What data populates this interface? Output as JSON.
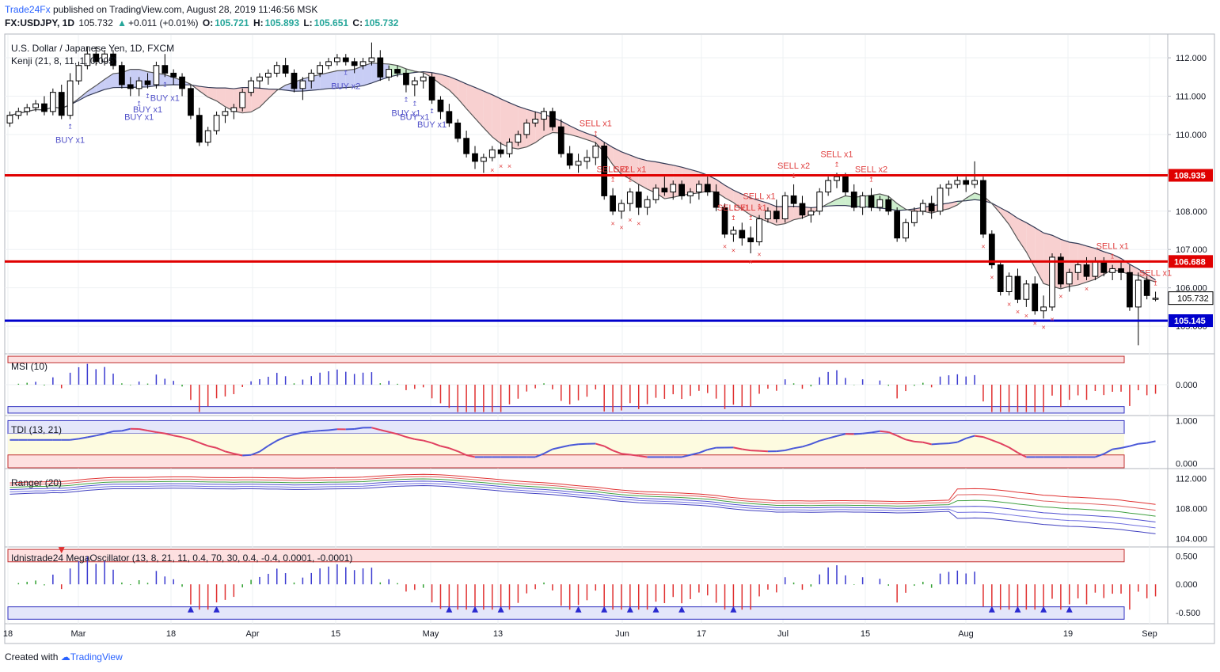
{
  "header": {
    "brand": "Trade24Fx",
    "published": "published on TradingView.com, August 28, 2019 11:46:56 MSK",
    "symbol": "FX:USDJPY, 1D",
    "last": "105.732",
    "change": "+0.011 (+0.01%)",
    "o_label": "O:",
    "o": "105.721",
    "h_label": "H:",
    "h": "105.893",
    "l_label": "L:",
    "l": "105.651",
    "c_label": "C:",
    "c": "105.732"
  },
  "footer": {
    "created": "Created with",
    "tv": "TradingView"
  },
  "colors": {
    "bull": "#ffffff",
    "bear": "#000000",
    "support": "#0000cc",
    "resistance": "#e00000",
    "buy": "#5050c8",
    "sell": "#e04040"
  },
  "chart_data": [
    {
      "type": "candlestick",
      "title": "U.S. Dollar / Japanese Yen, 1D, FXCM",
      "indicator_label": "Kenji (21, 8, 11, 1, 0.005)",
      "ylim": [
        104.3,
        112.6
      ],
      "yticks": [
        "112.000",
        "111.000",
        "110.000",
        "109.000",
        "108.000",
        "107.000",
        "106.000",
        "105.000"
      ],
      "xticks": [
        "18",
        "Mar",
        "18",
        "Apr",
        "15",
        "May",
        "13",
        "Jun",
        "17",
        "Jul",
        "15",
        "Aug",
        "19",
        "Sep"
      ],
      "horizontal_levels": [
        {
          "value": 108.935,
          "label": "108.935",
          "color": "#e00000"
        },
        {
          "value": 106.688,
          "label": "106.688",
          "color": "#e00000"
        },
        {
          "value": 105.145,
          "label": "105.145",
          "color": "#0000cc"
        }
      ],
      "last_price_label": "105.732",
      "annotations": [
        "BUY x1",
        "BUY x1",
        "BUY x1",
        "BUY x1",
        "BUY x2",
        "BUY x1",
        "BUY x1",
        "BUY x1",
        "SELL x1",
        "SELL x2",
        "SELL x1",
        "SELL x1",
        "SELL x1",
        "SELL x1",
        "SELL x2",
        "SELL x1",
        "SELL x2",
        "SELL x1",
        "SELL x1"
      ],
      "ohlc": [
        [
          110.3,
          110.6,
          110.2,
          110.5
        ],
        [
          110.5,
          110.7,
          110.4,
          110.6
        ],
        [
          110.6,
          110.8,
          110.5,
          110.7
        ],
        [
          110.7,
          110.9,
          110.6,
          110.8
        ],
        [
          110.8,
          111.0,
          110.5,
          110.6
        ],
        [
          110.6,
          111.2,
          110.5,
          111.1
        ],
        [
          111.1,
          111.3,
          110.4,
          110.5
        ],
        [
          110.5,
          111.6,
          110.4,
          111.4
        ],
        [
          111.4,
          111.9,
          111.3,
          111.8
        ],
        [
          111.8,
          112.3,
          111.7,
          112.1
        ],
        [
          112.1,
          112.3,
          111.8,
          111.9
        ],
        [
          111.9,
          112.2,
          111.8,
          112.1
        ],
        [
          112.1,
          112.2,
          111.7,
          111.8
        ],
        [
          111.8,
          111.9,
          111.2,
          111.3
        ],
        [
          111.3,
          111.5,
          111.0,
          111.2
        ],
        [
          111.2,
          111.5,
          111.0,
          111.4
        ],
        [
          111.4,
          111.6,
          111.2,
          111.3
        ],
        [
          111.3,
          111.9,
          111.2,
          111.8
        ],
        [
          111.8,
          112.1,
          111.5,
          111.6
        ],
        [
          111.6,
          111.7,
          111.3,
          111.5
        ],
        [
          111.5,
          111.6,
          111.0,
          111.2
        ],
        [
          111.2,
          111.3,
          110.4,
          110.5
        ],
        [
          110.5,
          110.7,
          109.7,
          109.8
        ],
        [
          109.8,
          110.2,
          109.7,
          110.1
        ],
        [
          110.1,
          110.6,
          110.0,
          110.5
        ],
        [
          110.5,
          110.7,
          110.3,
          110.6
        ],
        [
          110.6,
          110.8,
          110.4,
          110.7
        ],
        [
          110.7,
          111.2,
          110.6,
          111.1
        ],
        [
          111.1,
          111.5,
          111.0,
          111.4
        ],
        [
          111.4,
          111.6,
          111.2,
          111.5
        ],
        [
          111.5,
          111.7,
          111.3,
          111.6
        ],
        [
          111.6,
          111.9,
          111.5,
          111.8
        ],
        [
          111.8,
          112.0,
          111.5,
          111.6
        ],
        [
          111.6,
          111.7,
          111.1,
          111.2
        ],
        [
          111.2,
          111.5,
          110.9,
          111.4
        ],
        [
          111.4,
          111.7,
          111.2,
          111.6
        ],
        [
          111.6,
          111.9,
          111.5,
          111.8
        ],
        [
          111.8,
          112.0,
          111.7,
          111.9
        ],
        [
          111.9,
          112.1,
          111.8,
          112.0
        ],
        [
          112.0,
          112.1,
          111.8,
          111.9
        ],
        [
          111.9,
          112.0,
          111.6,
          111.8
        ],
        [
          111.8,
          112.0,
          111.7,
          111.9
        ],
        [
          111.9,
          112.4,
          111.8,
          112.0
        ],
        [
          112.0,
          112.2,
          111.4,
          111.5
        ],
        [
          111.5,
          111.8,
          111.4,
          111.7
        ],
        [
          111.7,
          111.8,
          111.5,
          111.6
        ],
        [
          111.6,
          111.7,
          111.1,
          111.3
        ],
        [
          111.3,
          111.5,
          111.0,
          111.4
        ],
        [
          111.4,
          111.6,
          111.2,
          111.5
        ],
        [
          111.5,
          111.6,
          110.8,
          110.9
        ],
        [
          110.9,
          111.0,
          110.4,
          110.6
        ],
        [
          110.6,
          110.8,
          110.2,
          110.3
        ],
        [
          110.3,
          110.4,
          109.8,
          109.9
        ],
        [
          109.9,
          110.1,
          109.4,
          109.5
        ],
        [
          109.5,
          109.7,
          109.1,
          109.3
        ],
        [
          109.3,
          109.5,
          109.0,
          109.4
        ],
        [
          109.4,
          109.7,
          109.3,
          109.6
        ],
        [
          109.6,
          109.8,
          109.4,
          109.5
        ],
        [
          109.5,
          109.9,
          109.4,
          109.8
        ],
        [
          109.8,
          110.1,
          109.7,
          110.0
        ],
        [
          110.0,
          110.4,
          109.9,
          110.3
        ],
        [
          110.3,
          110.6,
          110.2,
          110.4
        ],
        [
          110.4,
          110.7,
          110.1,
          110.6
        ],
        [
          110.6,
          110.7,
          110.1,
          110.2
        ],
        [
          110.2,
          110.4,
          109.4,
          109.5
        ],
        [
          109.5,
          109.7,
          109.1,
          109.2
        ],
        [
          109.2,
          109.5,
          109.0,
          109.3
        ],
        [
          109.3,
          109.6,
          109.1,
          109.4
        ],
        [
          109.4,
          109.8,
          109.2,
          109.7
        ],
        [
          109.7,
          109.8,
          108.3,
          108.4
        ],
        [
          108.4,
          108.6,
          107.9,
          108.0
        ],
        [
          108.0,
          108.3,
          107.8,
          108.2
        ],
        [
          108.2,
          108.6,
          108.0,
          108.5
        ],
        [
          108.5,
          108.7,
          107.9,
          108.1
        ],
        [
          108.1,
          108.4,
          107.9,
          108.3
        ],
        [
          108.3,
          108.7,
          108.2,
          108.6
        ],
        [
          108.6,
          108.9,
          108.4,
          108.5
        ],
        [
          108.5,
          108.8,
          108.3,
          108.7
        ],
        [
          108.7,
          108.8,
          108.3,
          108.4
        ],
        [
          108.4,
          108.6,
          108.2,
          108.5
        ],
        [
          108.5,
          108.8,
          108.3,
          108.7
        ],
        [
          108.7,
          108.9,
          108.4,
          108.5
        ],
        [
          108.5,
          108.7,
          108.0,
          108.1
        ],
        [
          108.1,
          108.2,
          107.3,
          107.4
        ],
        [
          107.4,
          107.6,
          107.2,
          107.5
        ],
        [
          107.5,
          107.7,
          107.1,
          107.3
        ],
        [
          107.3,
          107.6,
          106.9,
          107.2
        ],
        [
          107.2,
          107.9,
          107.1,
          107.8
        ],
        [
          107.8,
          108.1,
          107.7,
          108.0
        ],
        [
          108.0,
          108.3,
          107.7,
          107.8
        ],
        [
          107.8,
          108.5,
          107.7,
          108.4
        ],
        [
          108.4,
          108.7,
          108.1,
          108.2
        ],
        [
          108.2,
          108.4,
          107.8,
          107.9
        ],
        [
          107.9,
          108.1,
          107.7,
          108.0
        ],
        [
          108.0,
          108.6,
          107.9,
          108.5
        ],
        [
          108.5,
          108.9,
          108.4,
          108.8
        ],
        [
          108.8,
          109.0,
          108.6,
          108.9
        ],
        [
          108.9,
          109.0,
          108.4,
          108.5
        ],
        [
          108.5,
          108.7,
          108.0,
          108.1
        ],
        [
          108.1,
          108.5,
          107.9,
          108.4
        ],
        [
          108.4,
          108.6,
          108.0,
          108.1
        ],
        [
          108.1,
          108.4,
          108.0,
          108.3
        ],
        [
          108.3,
          108.4,
          107.9,
          108.0
        ],
        [
          108.0,
          108.1,
          107.2,
          107.3
        ],
        [
          107.3,
          107.8,
          107.2,
          107.7
        ],
        [
          107.7,
          108.1,
          107.6,
          108.0
        ],
        [
          108.0,
          108.3,
          107.9,
          108.2
        ],
        [
          108.2,
          108.4,
          107.8,
          108.0
        ],
        [
          108.0,
          108.7,
          107.9,
          108.6
        ],
        [
          108.6,
          108.8,
          108.4,
          108.7
        ],
        [
          108.7,
          108.9,
          108.6,
          108.8
        ],
        [
          108.8,
          108.9,
          108.5,
          108.7
        ],
        [
          108.7,
          109.3,
          108.6,
          108.8
        ],
        [
          108.8,
          108.9,
          107.3,
          107.4
        ],
        [
          107.4,
          107.5,
          106.5,
          106.6
        ],
        [
          106.6,
          106.7,
          105.8,
          105.9
        ],
        [
          105.9,
          106.4,
          105.8,
          106.3
        ],
        [
          106.3,
          106.5,
          105.6,
          105.7
        ],
        [
          105.7,
          106.2,
          105.5,
          106.1
        ],
        [
          106.1,
          106.3,
          105.3,
          105.4
        ],
        [
          105.4,
          105.8,
          105.2,
          105.5
        ],
        [
          105.5,
          106.9,
          105.4,
          106.8
        ],
        [
          106.8,
          106.9,
          106.0,
          106.1
        ],
        [
          106.1,
          106.5,
          105.9,
          106.4
        ],
        [
          106.4,
          106.7,
          106.2,
          106.6
        ],
        [
          106.6,
          106.8,
          106.2,
          106.3
        ],
        [
          106.3,
          106.8,
          106.2,
          106.7
        ],
        [
          106.7,
          106.8,
          106.3,
          106.4
        ],
        [
          106.4,
          106.6,
          106.2,
          106.5
        ],
        [
          106.5,
          106.7,
          106.2,
          106.4
        ],
        [
          106.4,
          106.6,
          105.4,
          105.5
        ],
        [
          105.5,
          106.4,
          104.5,
          106.2
        ],
        [
          106.2,
          106.3,
          105.7,
          105.8
        ],
        [
          105.7,
          105.9,
          105.65,
          105.73
        ]
      ]
    },
    {
      "type": "bar",
      "title": "MSI (10)",
      "ylim": [
        -0.55,
        0.55
      ],
      "yticks": [
        "0.000"
      ]
    },
    {
      "type": "line",
      "title": "TDI (13, 21)",
      "ylim": [
        -0.1,
        1.1
      ],
      "yticks": [
        "1.000",
        "0.000"
      ]
    },
    {
      "type": "line",
      "title": "Ranger (20)",
      "ylim": [
        103.0,
        113.2
      ],
      "yticks": [
        "112.000",
        "108.000",
        "104.000"
      ]
    },
    {
      "type": "bar",
      "title": "Idnistrade24 MegaOscillator (13, 8, 21, 11, 0.4, 70, 30, 0.4, -0.4, 0.0001, -0.0001)",
      "ylim": [
        -0.7,
        0.65
      ],
      "yticks": [
        "0.500",
        "0.000",
        "-0.500"
      ]
    }
  ]
}
